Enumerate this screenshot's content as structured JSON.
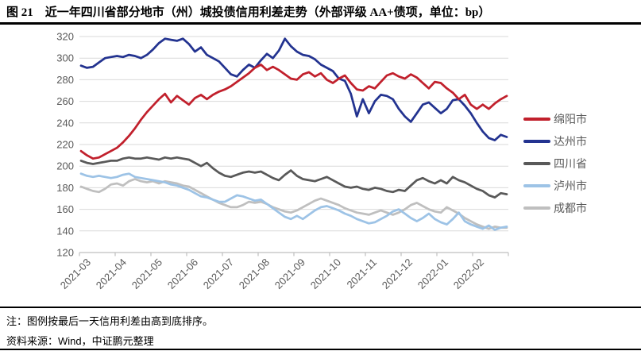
{
  "header": {
    "title": "图 21　近一年四川省部分地市（州）城投债信用利差走势（外部评级 AA+债项，单位：bp）"
  },
  "chart_data": {
    "type": "line",
    "title": "近一年四川省部分地市（州）城投债信用利差走势（外部评级 AA+债项，单位：bp）",
    "xlabel": "",
    "ylabel": "",
    "unit": "bp",
    "ylim": [
      120,
      320
    ],
    "ytick_step": 20,
    "grid": "horizontal",
    "legend_position": "right",
    "x_labels": [
      "2021-03",
      "2021-04",
      "2021-05",
      "2021-06",
      "2021-07",
      "2021-08",
      "2021-09",
      "2021-10",
      "2021-11",
      "2021-12",
      "2022-01",
      "2022-02"
    ],
    "axis_color": "#bfbfbf",
    "grid_color": "#d9d9d9",
    "tick_label_color": "#595959",
    "series": [
      {
        "name": "绵阳市",
        "color": "#c1202c",
        "values": [
          214,
          210,
          207,
          208,
          211,
          214,
          217,
          222,
          228,
          235,
          243,
          250,
          256,
          262,
          267,
          259,
          265,
          261,
          257,
          263,
          266,
          262,
          266,
          269,
          271,
          274,
          278,
          282,
          286,
          291,
          294,
          289,
          292,
          289,
          285,
          281,
          280,
          285,
          287,
          283,
          286,
          280,
          277,
          281,
          284,
          277,
          271,
          270,
          274,
          272,
          278,
          284,
          286,
          283,
          281,
          285,
          282,
          277,
          272,
          278,
          277,
          272,
          268,
          262,
          266,
          257,
          253,
          257,
          253,
          258,
          262,
          265
        ]
      },
      {
        "name": "达州市",
        "color": "#233390",
        "values": [
          293,
          291,
          292,
          296,
          300,
          301,
          302,
          301,
          303,
          302,
          300,
          303,
          308,
          314,
          318,
          317,
          316,
          318,
          313,
          306,
          310,
          303,
          300,
          297,
          291,
          285,
          283,
          289,
          294,
          291,
          298,
          304,
          300,
          307,
          318,
          311,
          306,
          303,
          302,
          299,
          294,
          291,
          288,
          281,
          279,
          267,
          246,
          262,
          249,
          260,
          266,
          265,
          262,
          253,
          246,
          241,
          249,
          257,
          259,
          254,
          249,
          253,
          261,
          262,
          256,
          249,
          240,
          232,
          226,
          224,
          229,
          227
        ]
      },
      {
        "name": "四川省",
        "color": "#595959",
        "values": [
          205,
          203,
          202,
          203,
          204,
          205,
          205,
          207,
          208,
          207,
          207,
          208,
          207,
          206,
          208,
          207,
          208,
          207,
          206,
          203,
          200,
          203,
          198,
          194,
          191,
          190,
          192,
          194,
          195,
          194,
          195,
          192,
          189,
          187,
          192,
          196,
          191,
          188,
          187,
          186,
          188,
          190,
          187,
          184,
          181,
          180,
          181,
          179,
          178,
          180,
          179,
          177,
          176,
          178,
          177,
          182,
          187,
          189,
          186,
          184,
          187,
          184,
          190,
          187,
          185,
          182,
          179,
          177,
          173,
          171,
          175,
          174
        ]
      },
      {
        "name": "泸州市",
        "color": "#9dc3e6",
        "values": [
          193,
          191,
          190,
          191,
          190,
          189,
          190,
          192,
          193,
          190,
          189,
          188,
          187,
          186,
          185,
          183,
          182,
          180,
          178,
          175,
          172,
          171,
          169,
          167,
          167,
          170,
          173,
          172,
          170,
          168,
          169,
          165,
          161,
          157,
          153,
          151,
          154,
          151,
          155,
          159,
          162,
          163,
          161,
          159,
          156,
          154,
          151,
          149,
          147,
          148,
          151,
          154,
          158,
          160,
          156,
          152,
          149,
          152,
          156,
          151,
          148,
          146,
          151,
          157,
          149,
          146,
          144,
          142,
          145,
          141,
          143,
          144
        ]
      },
      {
        "name": "成都市",
        "color": "#bfbfbf",
        "values": [
          181,
          179,
          177,
          176,
          179,
          183,
          184,
          182,
          186,
          188,
          186,
          185,
          186,
          184,
          186,
          185,
          184,
          182,
          181,
          178,
          175,
          172,
          169,
          166,
          164,
          162,
          162,
          164,
          167,
          166,
          167,
          165,
          162,
          160,
          158,
          157,
          159,
          162,
          165,
          168,
          170,
          168,
          166,
          164,
          161,
          159,
          157,
          156,
          155,
          157,
          159,
          157,
          155,
          157,
          160,
          164,
          166,
          163,
          160,
          158,
          157,
          162,
          159,
          156,
          152,
          149,
          146,
          144,
          142,
          144,
          143,
          143
        ]
      }
    ]
  },
  "notes": {
    "note": "注：图例按最后一天信用利差由高到底排序。",
    "source": "资料来源：Wind，中证鹏元整理"
  }
}
